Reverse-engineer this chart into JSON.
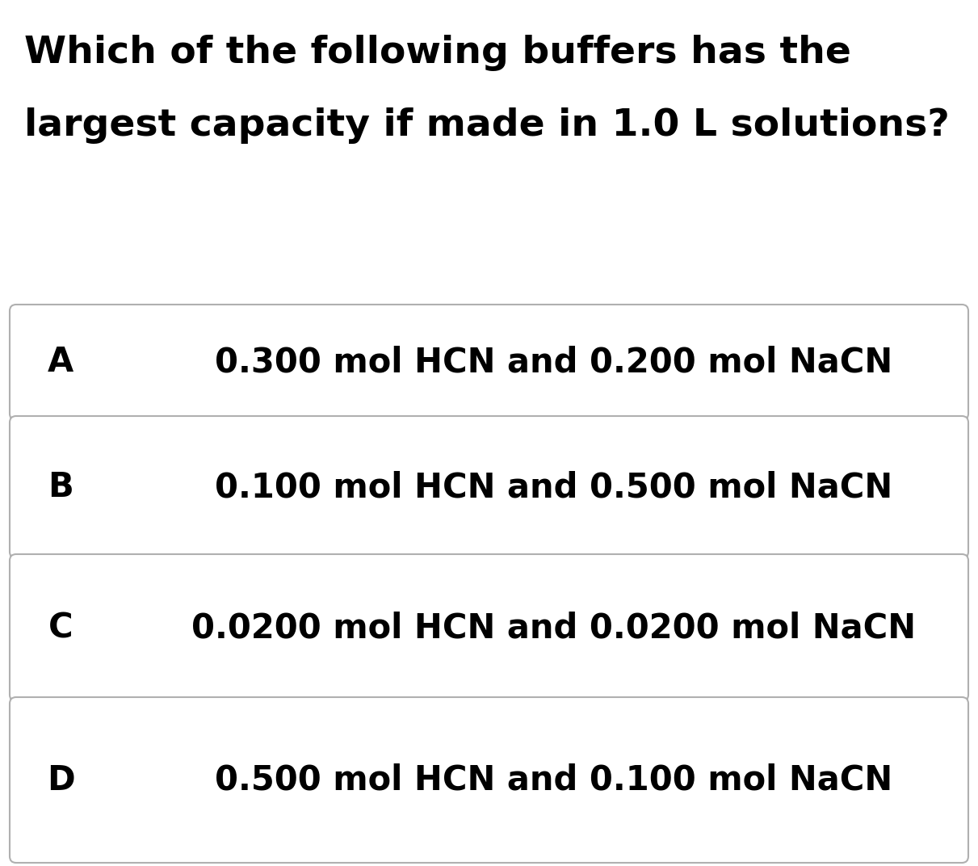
{
  "title_line1": "Which of the following buffers has the",
  "title_line2": "largest capacity if made in 1.0 L solutions?",
  "options": [
    {
      "label": "A",
      "text": "0.300 mol HCN and 0.200 mol NaCN"
    },
    {
      "label": "B",
      "text": "0.100 mol HCN and 0.500 mol NaCN"
    },
    {
      "label": "C",
      "text": "0.0200 mol HCN and 0.0200 mol NaCN"
    },
    {
      "label": "D",
      "text": "0.500 mol HCN and 0.100 mol NaCN"
    }
  ],
  "bg_color": "#ffffff",
  "text_color": "#000000",
  "box_border_color": "#b0b0b0",
  "box_fill_color": "#ffffff",
  "title_fontsize": 34,
  "option_label_fontsize": 30,
  "option_text_fontsize": 30,
  "fig_width": 12.11,
  "fig_height": 10.72
}
